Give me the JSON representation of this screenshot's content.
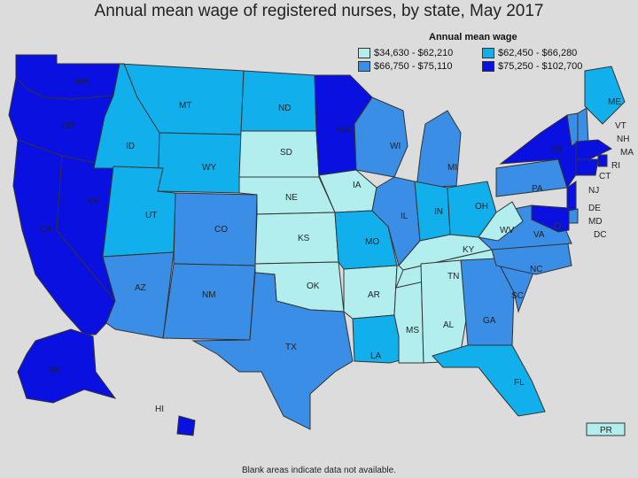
{
  "title": "Annual mean wage of registered nurses, by state, May 2017",
  "legend": {
    "title": "Annual mean wage",
    "items": [
      {
        "label": "$34,630 - $62,210",
        "color": "#b3eeee"
      },
      {
        "label": "$62,450 - $66,280",
        "color": "#11b0ec"
      },
      {
        "label": "$66,750 - $75,110",
        "color": "#3a8ee6"
      },
      {
        "label": "$75,250 - $102,700",
        "color": "#0a10e0"
      }
    ]
  },
  "footnote": "Blank areas indicate data not available.",
  "states": [
    {
      "abbr": "WA",
      "tier": 3
    },
    {
      "abbr": "OR",
      "tier": 3
    },
    {
      "abbr": "CA",
      "tier": 3
    },
    {
      "abbr": "NV",
      "tier": 3
    },
    {
      "abbr": "ID",
      "tier": 1
    },
    {
      "abbr": "MT",
      "tier": 1
    },
    {
      "abbr": "WY",
      "tier": 1
    },
    {
      "abbr": "UT",
      "tier": 1
    },
    {
      "abbr": "AZ",
      "tier": 2
    },
    {
      "abbr": "CO",
      "tier": 2
    },
    {
      "abbr": "NM",
      "tier": 2
    },
    {
      "abbr": "ND",
      "tier": 1
    },
    {
      "abbr": "SD",
      "tier": 0
    },
    {
      "abbr": "NE",
      "tier": 0
    },
    {
      "abbr": "KS",
      "tier": 0
    },
    {
      "abbr": "OK",
      "tier": 0
    },
    {
      "abbr": "TX",
      "tier": 2
    },
    {
      "abbr": "MN",
      "tier": 3
    },
    {
      "abbr": "IA",
      "tier": 0
    },
    {
      "abbr": "MO",
      "tier": 1
    },
    {
      "abbr": "AR",
      "tier": 0
    },
    {
      "abbr": "LA",
      "tier": 1
    },
    {
      "abbr": "WI",
      "tier": 2
    },
    {
      "abbr": "IL",
      "tier": 2
    },
    {
      "abbr": "MS",
      "tier": 0
    },
    {
      "abbr": "MI",
      "tier": 2
    },
    {
      "abbr": "IN",
      "tier": 1
    },
    {
      "abbr": "OH",
      "tier": 1
    },
    {
      "abbr": "KY",
      "tier": 0
    },
    {
      "abbr": "TN",
      "tier": 0
    },
    {
      "abbr": "AL",
      "tier": 0
    },
    {
      "abbr": "GA",
      "tier": 2
    },
    {
      "abbr": "FL",
      "tier": 1
    },
    {
      "abbr": "SC",
      "tier": 2
    },
    {
      "abbr": "NC",
      "tier": 2
    },
    {
      "abbr": "VA",
      "tier": 2
    },
    {
      "abbr": "WV",
      "tier": 0
    },
    {
      "abbr": "PA",
      "tier": 2
    },
    {
      "abbr": "NY",
      "tier": 3
    },
    {
      "abbr": "ME",
      "tier": 1
    },
    {
      "abbr": "VT",
      "tier": 2
    },
    {
      "abbr": "NH",
      "tier": 2
    },
    {
      "abbr": "MA",
      "tier": 3
    },
    {
      "abbr": "RI",
      "tier": 3
    },
    {
      "abbr": "CT",
      "tier": 3
    },
    {
      "abbr": "NJ",
      "tier": 3
    },
    {
      "abbr": "DE",
      "tier": 2
    },
    {
      "abbr": "MD",
      "tier": 3
    },
    {
      "abbr": "DC",
      "tier": 3
    },
    {
      "abbr": "AK",
      "tier": 3
    },
    {
      "abbr": "HI",
      "tier": 3
    },
    {
      "abbr": "PR",
      "tier": 0
    }
  ]
}
